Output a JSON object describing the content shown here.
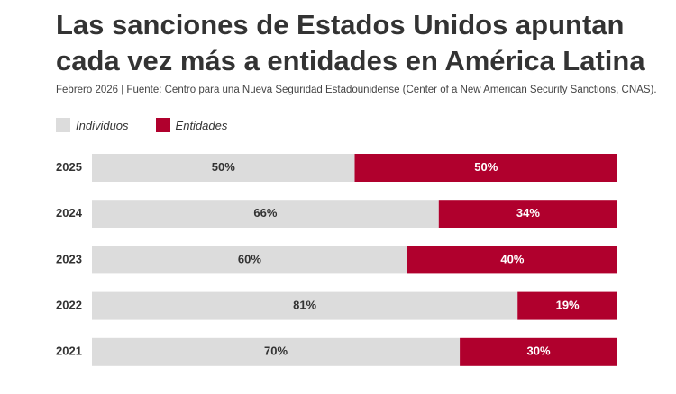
{
  "title": "Las sanciones de Estados Unidos apuntan cada vez más a entidades en América Latina",
  "subtitle": "Febrero 2026 | Fuente: Centro para una Nueva Seguridad Estadounidense (Center of a New American Security Sanctions, CNAS).",
  "colors": {
    "individuos": "#dcdcdc",
    "entidades": "#b0002d",
    "text": "#333333",
    "label_on_red": "#ffffff"
  },
  "chart_data": {
    "type": "bar",
    "orientation": "horizontal",
    "stacked": true,
    "percent": true,
    "categories": [
      "2025",
      "2024",
      "2023",
      "2022",
      "2021"
    ],
    "series": [
      {
        "name": "Individuos",
        "values": [
          50,
          66,
          60,
          81,
          70
        ]
      },
      {
        "name": "Entidades",
        "values": [
          50,
          34,
          40,
          19,
          30
        ]
      }
    ],
    "data_labels": {
      "Individuos": [
        "50%",
        "66%",
        "60%",
        "81%",
        "70%"
      ],
      "Entidades": [
        "50%",
        "34%",
        "40%",
        "19%",
        "30%"
      ]
    },
    "xlim": [
      0,
      100
    ],
    "legend_position": "top-left",
    "grid": false
  }
}
